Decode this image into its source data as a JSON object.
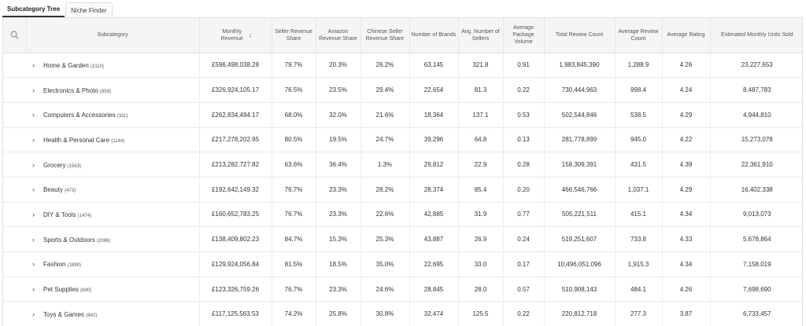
{
  "tabs": [
    {
      "label": "Subcategory Tree",
      "active": true
    },
    {
      "label": "Niche Finder",
      "active": false
    }
  ],
  "icons": {
    "search": "search-icon",
    "expand": "chevron-right-icon",
    "sort": "arrow-down-icon"
  },
  "columns": {
    "subcategory": "Subcategory",
    "monthly_revenue": "Monthly Revenue",
    "seller_revenue_share": "Seller Revenue Share",
    "amazon_revenue_share": "Amazon Revenue Share",
    "chinese_seller_revenue_share": "Chinese Seller Revenue Share",
    "number_of_brands": "Number of Brands",
    "avg_number_of_sellers": "Avg. Number of Sellers",
    "average_package_volume": "Average Package Volume",
    "total_review_count": "Total Review Count",
    "average_review_count": "Average Review Count",
    "average_rating": "Average Rating",
    "estimated_monthly_units_sold": "Estimated Monthly Units Sold"
  },
  "rows": [
    {
      "name": "Home & Garden",
      "count": "(3110)",
      "monthly_revenue": "£596,498,038.28",
      "seller_share": "79.7%",
      "amazon_share": "20.3%",
      "chinese_share": "26.2%",
      "brands": "63,145",
      "sellers": "321.8",
      "volume": "0.91",
      "total_reviews": "1,983,845,390",
      "avg_reviews": "1,288.9",
      "rating": "4.26",
      "units": "23,227,653"
    },
    {
      "name": "Electronics & Photo",
      "count": "(659)",
      "monthly_revenue": "£326,924,105.17",
      "seller_share": "76.5%",
      "amazon_share": "23.5%",
      "chinese_share": "29.4%",
      "brands": "22,654",
      "sellers": "81.3",
      "volume": "0.22",
      "total_reviews": "730,444,963",
      "avg_reviews": "998.4",
      "rating": "4.24",
      "units": "8,487,783"
    },
    {
      "name": "Computers & Accessories",
      "count": "(311)",
      "monthly_revenue": "£262,834,494.17",
      "seller_share": "68.0%",
      "amazon_share": "32.0%",
      "chinese_share": "21.6%",
      "brands": "18,364",
      "sellers": "137.1",
      "volume": "0.53",
      "total_reviews": "502,544,846",
      "avg_reviews": "538.5",
      "rating": "4.29",
      "units": "4,944,810"
    },
    {
      "name": "Health & Personal Care",
      "count": "(1144)",
      "monthly_revenue": "£217,278,202.95",
      "seller_share": "80.5%",
      "amazon_share": "19.5%",
      "chinese_share": "24.7%",
      "brands": "39,296",
      "sellers": "64.8",
      "volume": "0.13",
      "total_reviews": "281,778,899",
      "avg_reviews": "945.0",
      "rating": "4.22",
      "units": "15,273,078"
    },
    {
      "name": "Grocery",
      "count": "(1563)",
      "monthly_revenue": "£213,282,727.82",
      "seller_share": "63.6%",
      "amazon_share": "36.4%",
      "chinese_share": "1.3%",
      "brands": "29,812",
      "sellers": "22.9",
      "volume": "0.28",
      "total_reviews": "158,309,391",
      "avg_reviews": "431.5",
      "rating": "4.39",
      "units": "22,361,910"
    },
    {
      "name": "Beauty",
      "count": "(473)",
      "monthly_revenue": "£192,642,149.32",
      "seller_share": "76.7%",
      "amazon_share": "23.3%",
      "chinese_share": "28.2%",
      "brands": "28,374",
      "sellers": "85.4",
      "volume": "0.20",
      "total_reviews": "466,546,766",
      "avg_reviews": "1,037.1",
      "rating": "4.29",
      "units": "16,402,338"
    },
    {
      "name": "DIY & Tools",
      "count": "(1474)",
      "monthly_revenue": "£160,652,783.25",
      "seller_share": "76.7%",
      "amazon_share": "23.3%",
      "chinese_share": "22.6%",
      "brands": "42,885",
      "sellers": "31.9",
      "volume": "0.77",
      "total_reviews": "505,221,511",
      "avg_reviews": "415.1",
      "rating": "4.34",
      "units": "9,013,073"
    },
    {
      "name": "Sports & Outdoors",
      "count": "(2086)",
      "monthly_revenue": "£138,409,802.23",
      "seller_share": "84.7%",
      "amazon_share": "15.3%",
      "chinese_share": "25.3%",
      "brands": "43,887",
      "sellers": "26.9",
      "volume": "0.24",
      "total_reviews": "519,251,607",
      "avg_reviews": "733.8",
      "rating": "4.33",
      "units": "5,678,864"
    },
    {
      "name": "Fashion",
      "count": "(1890)",
      "monthly_revenue": "£129,924,056.84",
      "seller_share": "81.5%",
      "amazon_share": "18.5%",
      "chinese_share": "35.0%",
      "brands": "22,695",
      "sellers": "33.0",
      "volume": "0.17",
      "total_reviews": "10,496,051,096",
      "avg_reviews": "1,915.3",
      "rating": "4.34",
      "units": "7,158,019"
    },
    {
      "name": "Pet Supplies",
      "count": "(690)",
      "monthly_revenue": "£123,326,759.26",
      "seller_share": "76.7%",
      "amazon_share": "23.3%",
      "chinese_share": "24.6%",
      "brands": "28,845",
      "sellers": "28.0",
      "volume": "0.57",
      "total_reviews": "510,908,143",
      "avg_reviews": "484.1",
      "rating": "4.26",
      "units": "7,698,690"
    },
    {
      "name": "Toys & Games",
      "count": "(842)",
      "monthly_revenue": "£117,125,563.53",
      "seller_share": "74.2%",
      "amazon_share": "25.8%",
      "chinese_share": "30.8%",
      "brands": "32,474",
      "sellers": "125.5",
      "volume": "0.22",
      "total_reviews": "220,812,718",
      "avg_reviews": "277.3",
      "rating": "3.87",
      "units": "6,733,457"
    }
  ]
}
